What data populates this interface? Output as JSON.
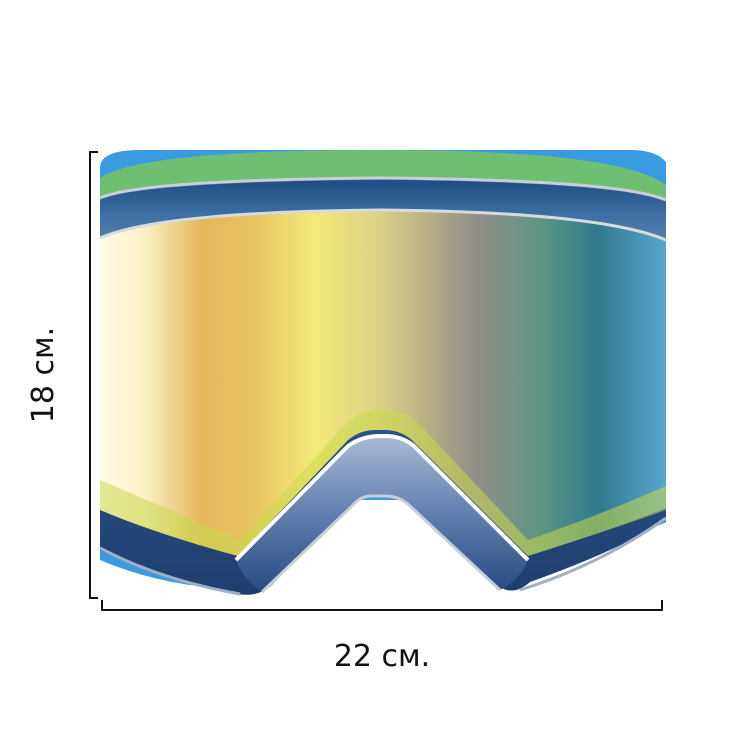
{
  "dimensions": {
    "width_label": "22 см.",
    "height_label": "18 см."
  },
  "colors": {
    "frame_dark": "#2e4f7f",
    "frame_mid": "#4f77a8",
    "strap_green": "#6fbf73",
    "strap_blue": "#3b9be0",
    "lens_warm": "#f2e06a",
    "lens_cool": "#3d8aa8",
    "dimension_line": "#111111"
  }
}
